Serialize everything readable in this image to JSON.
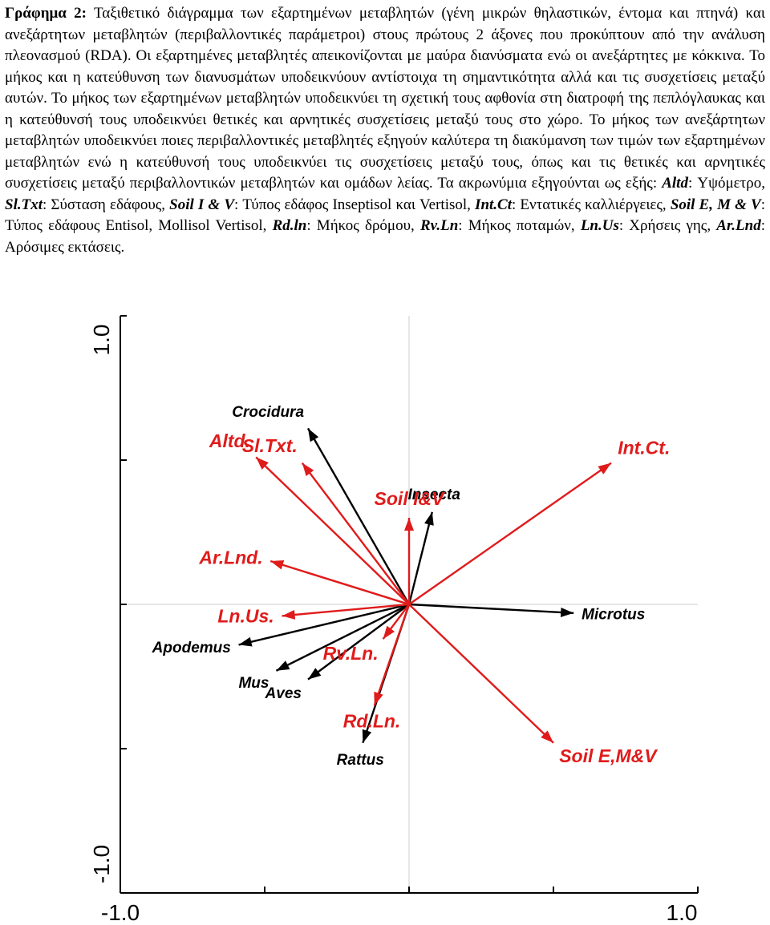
{
  "caption": {
    "label": "Γράφημα 2:",
    "text_1": " Ταξιθετικό διάγραμμα των εξαρτημένων μεταβλητών (γένη μικρών θηλαστικών, έντομα και πτηνά) και ανεξάρτητων μεταβλητών (περιβαλλοντικές παράμετροι) στους πρώτους 2 άξονες που προκύπτουν από την ανάλυση πλεονασμού (RDA). Οι εξαρτημένες μεταβλητές απεικονίζονται με μαύρα διανύσματα ενώ οι ανεξάρτητες με κόκκινα. Το μήκος και η κατεύθυνση των διανυσμάτων υποδεικνύουν αντίστοιχα τη σημαντικότητα αλλά και τις συσχετίσεις μεταξύ αυτών. Το μήκος των εξαρτημένων μεταβλητών υποδεικνύει τη σχετική τους αφθονία στη διατροφή της πεπλόγλαυκας και η κατεύθυνσή τους υποδεικνύει θετικές και αρνητικές συσχετίσεις μεταξύ τους στο χώρο. Το μήκος των ανεξάρτητων μεταβλητών υποδεικνύει ποιες περιβαλλοντικές μεταβλητές εξηγούν καλύτερα τη διακύμανση των τιμών των εξαρτημένων μεταβλητών ενώ η κατεύθυνσή τους υποδεικνύει τις συσχετίσεις μεταξύ τους, όπως και τις θετικές και αρνητικές συσχετίσεις μεταξύ περιβαλλοντικών μεταβλητών και ομάδων λείας. Τα ακρωνύμια εξηγούνται ως εξής: ",
    "acronyms": [
      {
        "abbr": "Altd",
        "desc": ": Υψόμετρο, "
      },
      {
        "abbr": "Sl.Txt",
        "desc": ": Σύσταση εδάφους, "
      },
      {
        "abbr": "Soil I & V",
        "desc": ": Τύπος εδάφος Inseptisol και Vertisol, "
      },
      {
        "abbr": "Int.Ct",
        "desc": ": Εντατικές καλλιέργειες, "
      },
      {
        "abbr": "Soil E, M & V",
        "desc": ": Τύπος εδάφους Entisol, Mollisol Vertisol, "
      },
      {
        "abbr": "Rd.ln",
        "desc": ": Μήκος δρόμου, "
      },
      {
        "abbr": "Rv.Ln",
        "desc": ": Μήκος ποταμών, "
      },
      {
        "abbr": "Ln.Us",
        "desc": ": Χρήσεις γης, "
      },
      {
        "abbr": "Ar.Lnd",
        "desc": ": Αρόσιμες εκτάσεις."
      }
    ]
  },
  "chart_data": {
    "type": "biplot",
    "xlim": [
      -1.0,
      1.0
    ],
    "ylim": [
      -1.0,
      1.0
    ],
    "x_tick_labels": [
      "-1.0",
      "1.0"
    ],
    "y_tick_labels": [
      "-1.0",
      "1.0"
    ],
    "series": [
      {
        "color": "#000000",
        "vectors": [
          {
            "label": "Crocidura",
            "x": -0.35,
            "y": 0.61
          },
          {
            "label": "Insecta",
            "x": 0.08,
            "y": 0.32
          },
          {
            "label": "Microtus",
            "x": 0.57,
            "y": -0.03
          },
          {
            "label": "Apodemus",
            "x": -0.59,
            "y": -0.14
          },
          {
            "label": "Mus",
            "x": -0.46,
            "y": -0.23
          },
          {
            "label": "Aves",
            "x": -0.35,
            "y": -0.26
          },
          {
            "label": "Rattus",
            "x": -0.16,
            "y": -0.48
          }
        ]
      },
      {
        "color": "#e01b1b",
        "vectors": [
          {
            "label": "Altd.",
            "x": -0.53,
            "y": 0.51
          },
          {
            "label": "Sl.Txt.",
            "x": -0.37,
            "y": 0.49
          },
          {
            "label": "Soil I&V",
            "x": 0.0,
            "y": 0.3
          },
          {
            "label": "Int.Ct.",
            "x": 0.7,
            "y": 0.49
          },
          {
            "label": "Ar.Lnd.",
            "x": -0.48,
            "y": 0.15
          },
          {
            "label": "Ln.Us.",
            "x": -0.44,
            "y": -0.04
          },
          {
            "label": "Rv.Ln.",
            "x": -0.09,
            "y": -0.12
          },
          {
            "label": "Rd.Ln.",
            "x": -0.12,
            "y": -0.35
          },
          {
            "label": "Soil E,M&V",
            "x": 0.5,
            "y": -0.48
          }
        ]
      }
    ]
  }
}
